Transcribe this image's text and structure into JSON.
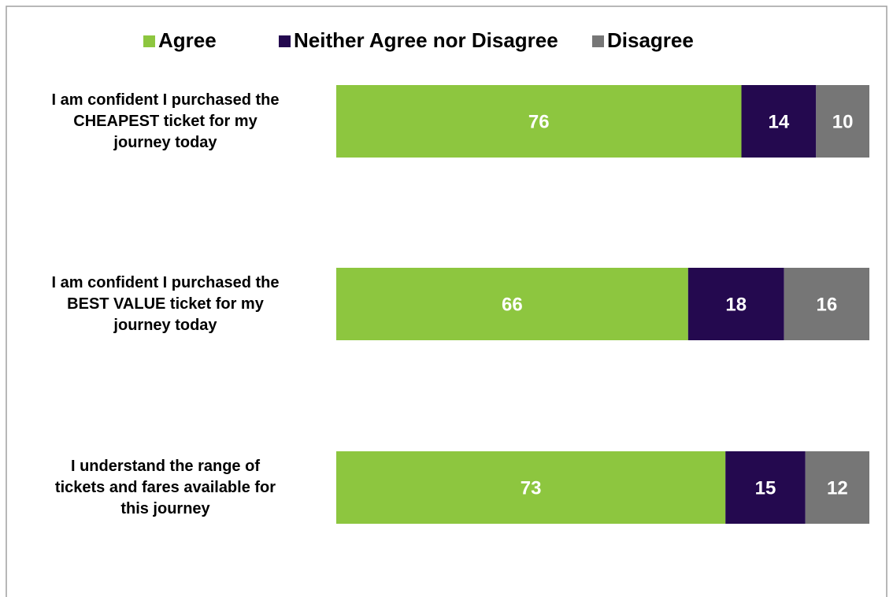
{
  "chart_data": {
    "type": "stacked-barh",
    "categories": [
      "I am confident I purchased the\nCHEAPEST ticket for my\njourney today",
      "I am confident I purchased the\nBEST VALUE ticket for my\njourney today",
      "I understand the range of\ntickets and fares available for\nthis journey"
    ],
    "series": [
      {
        "name": "Agree",
        "color": "#8dc63f",
        "values": [
          76,
          66,
          73
        ]
      },
      {
        "name": "Neither Agree nor Disagree",
        "color": "#24094f",
        "values": [
          14,
          18,
          15
        ]
      },
      {
        "name": "Disagree",
        "color": "#767676",
        "values": [
          10,
          16,
          12
        ]
      }
    ],
    "legend": "top"
  }
}
